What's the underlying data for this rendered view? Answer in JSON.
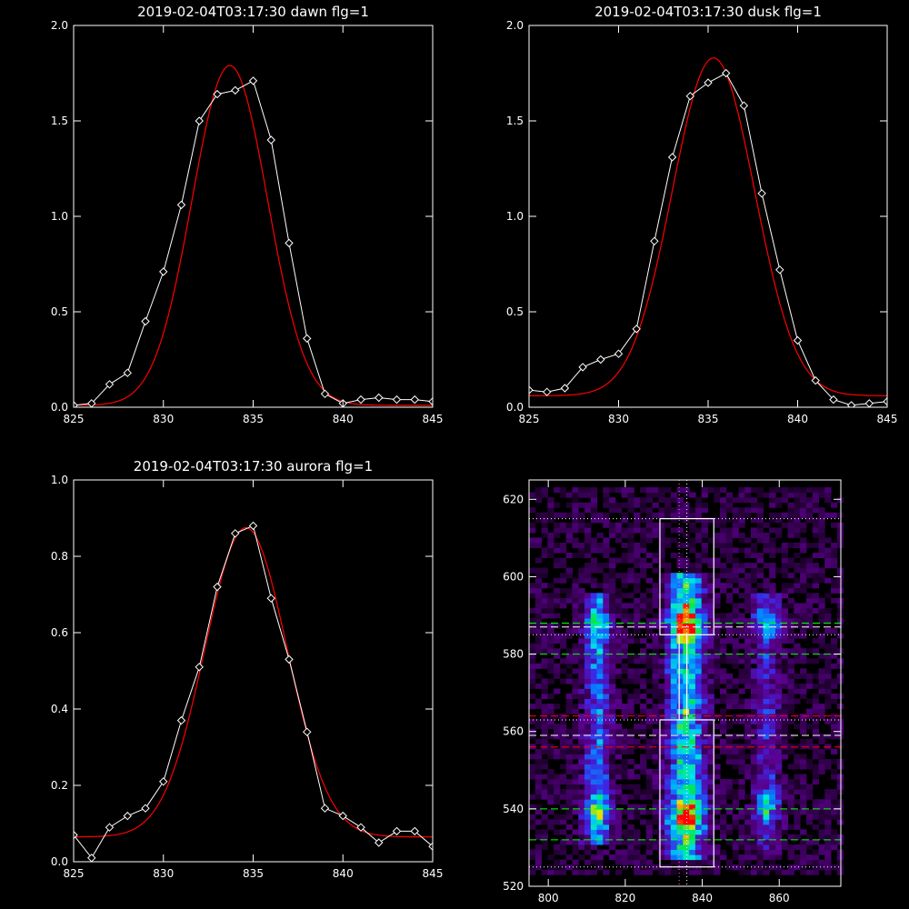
{
  "chart_data": [
    {
      "id": "dawn",
      "type": "line",
      "title": "2019-02-04T03:17:30 dawn flg=1",
      "xlim": [
        825,
        845
      ],
      "ylim": [
        0.0,
        2.0
      ],
      "xticks": [
        825,
        830,
        835,
        840,
        845
      ],
      "xtick_labels": [
        "825",
        "830",
        "835",
        "840",
        "845"
      ],
      "yticks": [
        0.0,
        0.5,
        1.0,
        1.5,
        2.0
      ],
      "ytick_labels": [
        "0.0",
        "0.5",
        "1.0",
        "1.5",
        "2.0"
      ],
      "series": [
        {
          "kind": "data",
          "color": "#ffffff",
          "marker": "diamond",
          "x": [
            825,
            826,
            827,
            828,
            829,
            830,
            831,
            832,
            833,
            834,
            835,
            836,
            837,
            838,
            839,
            840,
            841,
            842,
            843,
            844,
            845
          ],
          "y": [
            0.01,
            0.02,
            0.12,
            0.18,
            0.45,
            0.71,
            1.06,
            1.5,
            1.64,
            1.66,
            1.71,
            1.4,
            0.86,
            0.36,
            0.07,
            0.02,
            0.04,
            0.05,
            0.04,
            0.04,
            0.03
          ]
        },
        {
          "kind": "fit",
          "color": "#ff0000",
          "gaussian": {
            "amplitude": 1.78,
            "center": 833.7,
            "sigma": 2.1,
            "offset": 0.01
          }
        }
      ]
    },
    {
      "id": "dusk",
      "type": "line",
      "title": "2019-02-04T03:17:30 dusk flg=1",
      "xlim": [
        825,
        845
      ],
      "ylim": [
        0.0,
        2.0
      ],
      "xticks": [
        825,
        830,
        835,
        840,
        845
      ],
      "xtick_labels": [
        "825",
        "830",
        "835",
        "840",
        "845"
      ],
      "yticks": [
        0.0,
        0.5,
        1.0,
        1.5,
        2.0
      ],
      "ytick_labels": [
        "0.0",
        "0.5",
        "1.0",
        "1.5",
        "2.0"
      ],
      "series": [
        {
          "kind": "data",
          "color": "#ffffff",
          "marker": "diamond",
          "x": [
            825,
            826,
            827,
            828,
            829,
            830,
            831,
            832,
            833,
            834,
            835,
            836,
            837,
            838,
            839,
            840,
            841,
            842,
            843,
            844,
            845
          ],
          "y": [
            0.09,
            0.08,
            0.1,
            0.21,
            0.25,
            0.28,
            0.41,
            0.87,
            1.31,
            1.63,
            1.7,
            1.75,
            1.58,
            1.12,
            0.72,
            0.35,
            0.14,
            0.04,
            0.01,
            0.02,
            0.03
          ]
        },
        {
          "kind": "fit",
          "color": "#ff0000",
          "gaussian": {
            "amplitude": 1.77,
            "center": 835.3,
            "sigma": 2.3,
            "offset": 0.06
          }
        }
      ]
    },
    {
      "id": "aurora",
      "type": "line",
      "title": "2019-02-04T03:17:30 aurora flg=1",
      "xlim": [
        825,
        845
      ],
      "ylim": [
        0.0,
        1.0
      ],
      "xticks": [
        825,
        830,
        835,
        840,
        845
      ],
      "xtick_labels": [
        "825",
        "830",
        "835",
        "840",
        "845"
      ],
      "yticks": [
        0.0,
        0.2,
        0.4,
        0.6,
        0.8,
        1.0
      ],
      "ytick_labels": [
        "0.0",
        "0.2",
        "0.4",
        "0.6",
        "0.8",
        "1.0"
      ],
      "series": [
        {
          "kind": "data",
          "color": "#ffffff",
          "marker": "diamond",
          "x": [
            825,
            826,
            827,
            828,
            829,
            830,
            831,
            832,
            833,
            834,
            835,
            836,
            837,
            838,
            839,
            840,
            841,
            842,
            843,
            844,
            845
          ],
          "y": [
            0.07,
            0.01,
            0.09,
            0.12,
            0.14,
            0.21,
            0.37,
            0.51,
            0.72,
            0.86,
            0.88,
            0.69,
            0.53,
            0.34,
            0.14,
            0.12,
            0.09,
            0.05,
            0.08,
            0.08,
            0.04
          ]
        },
        {
          "kind": "fit",
          "color": "#ff0000",
          "gaussian": {
            "amplitude": 0.81,
            "center": 834.6,
            "sigma": 2.3,
            "offset": 0.065
          }
        }
      ]
    },
    {
      "id": "spectrogram",
      "type": "heatmap",
      "title": "",
      "xlim": [
        795,
        876
      ],
      "ylim": [
        520,
        625
      ],
      "xticks": [
        800,
        820,
        840,
        860
      ],
      "xtick_labels": [
        "800",
        "820",
        "840",
        "860"
      ],
      "yticks": [
        520,
        540,
        560,
        580,
        600,
        620
      ],
      "ytick_labels": [
        "520",
        "540",
        "560",
        "580",
        "600",
        "620"
      ],
      "emission_columns": [
        {
          "x": 812,
          "y_range": [
            530,
            595
          ],
          "peaks": [
            538,
            587
          ]
        },
        {
          "x": 835,
          "y_range": [
            526,
            600
          ],
          "peaks": [
            537,
            587
          ]
        },
        {
          "x": 856,
          "y_range": [
            528,
            595
          ],
          "peaks": [
            540,
            588
          ]
        }
      ],
      "boxes": [
        {
          "x_range": [
            829,
            843
          ],
          "y_range": [
            585,
            615
          ],
          "color": "#ffffff"
        },
        {
          "x_range": [
            829,
            843
          ],
          "y_range": [
            525,
            563
          ],
          "color": "#ffffff"
        },
        {
          "x_range": [
            834,
            836
          ],
          "y_range": [
            563,
            585
          ],
          "color": "#ffffff"
        }
      ],
      "hlines": [
        {
          "y": 615,
          "color": "#ffffff",
          "style": "dotted"
        },
        {
          "y": 588,
          "color": "#00ff00",
          "style": "dashed"
        },
        {
          "y": 587,
          "color": "#ffffff",
          "style": "dashed"
        },
        {
          "y": 585,
          "color": "#ffffff",
          "style": "dotted"
        },
        {
          "y": 580,
          "color": "#00ff00",
          "style": "dashed"
        },
        {
          "y": 564,
          "color": "#ff0000",
          "style": "dashed"
        },
        {
          "y": 563,
          "color": "#ffffff",
          "style": "dotted"
        },
        {
          "y": 559,
          "color": "#ffffff",
          "style": "dashed"
        },
        {
          "y": 556,
          "color": "#ff0000",
          "style": "dashed"
        },
        {
          "y": 540,
          "color": "#00ff00",
          "style": "dashed"
        },
        {
          "y": 532,
          "color": "#00ff00",
          "style": "dashed"
        },
        {
          "y": 525,
          "color": "#ffffff",
          "style": "dotted"
        }
      ],
      "vlines": [
        {
          "x": 834,
          "color": "#ff66ff",
          "style": "dotted"
        },
        {
          "x": 836,
          "color": "#ffffff",
          "style": "dotted"
        }
      ]
    }
  ]
}
